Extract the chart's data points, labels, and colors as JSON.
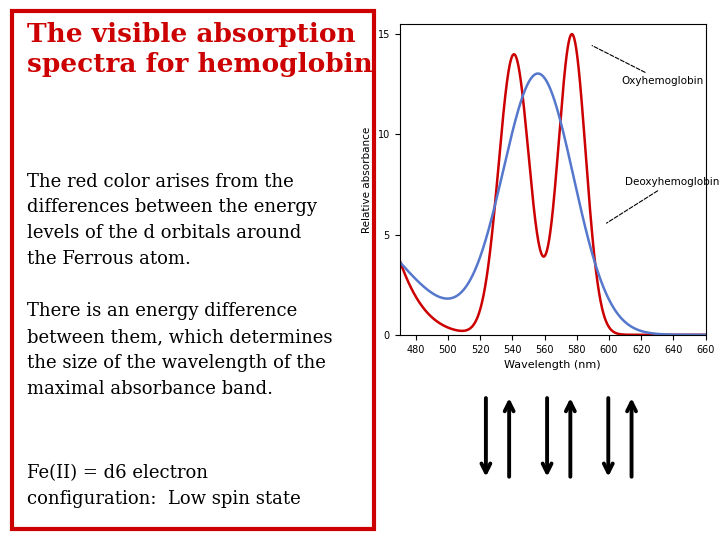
{
  "title": "The visible absorption\nspectra for hemoglobin",
  "title_color": "#cc0000",
  "background_color": "#ffffff",
  "border_color": "#cc0000",
  "text1": "The red color arises from the\ndifferences between the energy\nlevels of the d orbitals around\nthe Ferrous atom.",
  "text2": "There is an energy difference\nbetween them, which determines\nthe size of the wavelength of the\nmaximal absorbance band.",
  "text3": "Fe(II) = d6 electron\nconfiguration:  Low spin state",
  "plot_xlabel": "Wavelength (nm)",
  "plot_ylabel": "Relative absorbance",
  "oxy_label": "Oxyhemoglobin",
  "deoxy_label": "Deoxyhemoglobin",
  "oxy_color": "#cc0000",
  "deoxy_color": "#5577cc",
  "xlim": [
    470,
    660
  ],
  "ylim": [
    0,
    15.5
  ],
  "xticks": [
    480,
    500,
    520,
    540,
    560,
    580,
    600,
    620,
    640,
    660
  ],
  "yticks": [
    0,
    5,
    10,
    15
  ],
  "arrows_color": "#000000",
  "fig_width": 7.2,
  "fig_height": 5.4,
  "dpi": 100
}
